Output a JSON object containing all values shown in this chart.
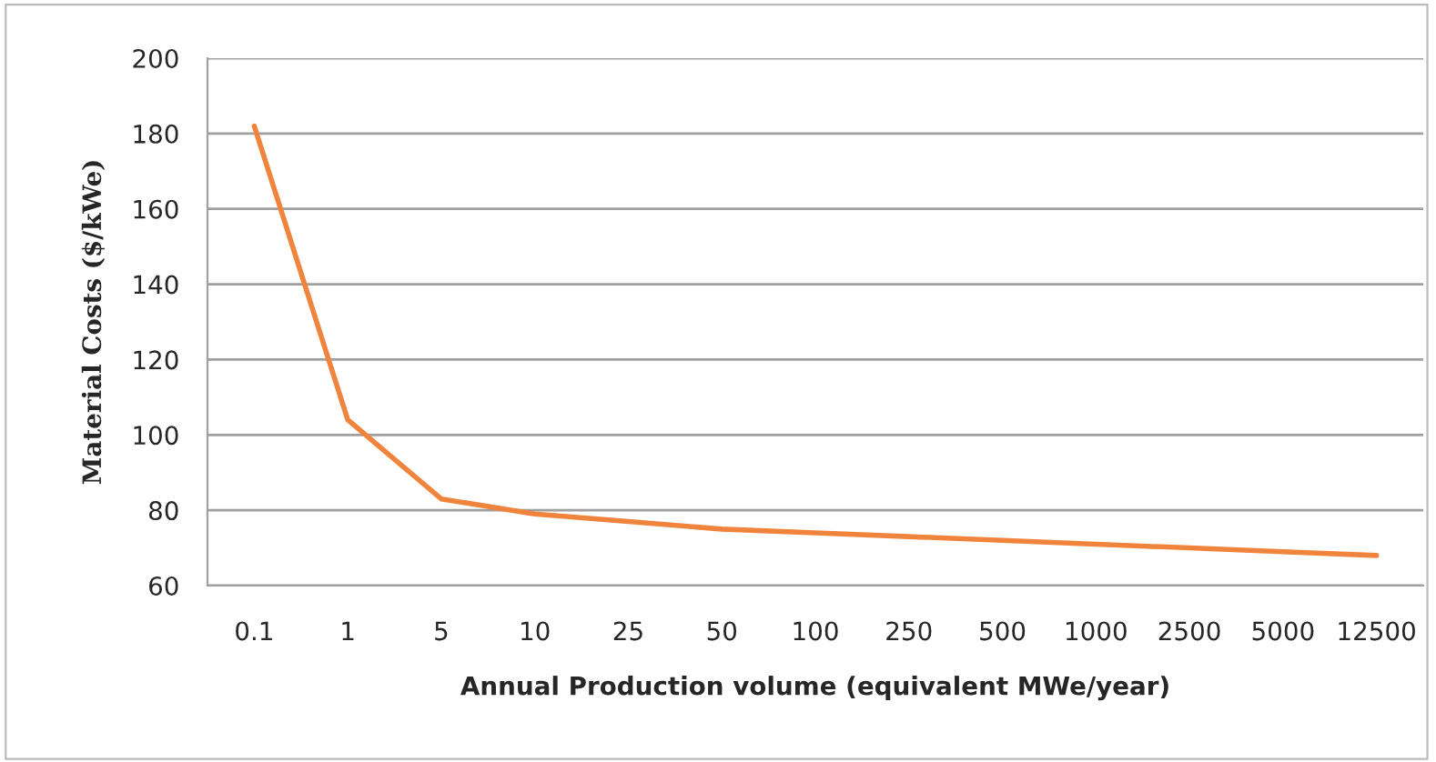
{
  "chart_data": {
    "type": "line",
    "xlabel": "Annual Production volume (equivalent MWe/year)",
    "ylabel": "Material Costs ($/kWe)",
    "categories": [
      "0.1",
      "1",
      "5",
      "10",
      "25",
      "50",
      "100",
      "250",
      "500",
      "1000",
      "2500",
      "5000",
      "12500"
    ],
    "series": [
      {
        "color": "#f0843c",
        "values": [
          182,
          104,
          83,
          79,
          77,
          75,
          74,
          73,
          72,
          71,
          70,
          69,
          68
        ]
      }
    ],
    "ylim": [
      60,
      200
    ],
    "yticks": [
      60,
      80,
      100,
      120,
      140,
      160,
      180,
      200
    ],
    "grid": "y",
    "legend": false,
    "marker": "none",
    "line_style": "solid"
  }
}
